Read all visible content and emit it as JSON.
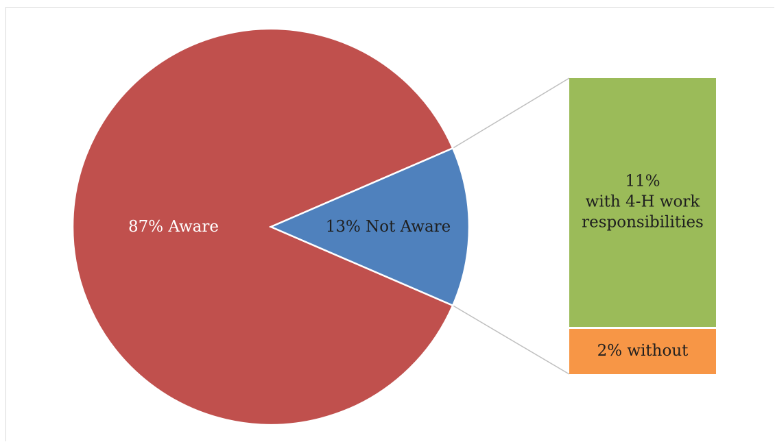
{
  "chart_data": {
    "type": "pie",
    "subtype": "bar-of-pie",
    "title": "",
    "slices": [
      {
        "label": "87% Aware",
        "value": 87,
        "color": "#c0504d",
        "label_color": "#ffffff"
      },
      {
        "label": "13% Not Aware",
        "value": 13,
        "color": "#4f81bd",
        "label_color": "#1f1f1f"
      }
    ],
    "exploded_slice": "13% Not Aware",
    "breakdown": [
      {
        "label_lines": [
          "11%",
          "with 4-H work",
          "responsibilities"
        ],
        "value": 11,
        "color": "#9bbb59",
        "label_color": "#1f1f1f"
      },
      {
        "label_lines": [
          "2% without"
        ],
        "value": 2,
        "color": "#f79646",
        "label_color": "#1f1f1f"
      }
    ],
    "connector_color": "#bfbfbf",
    "legend": "none"
  }
}
